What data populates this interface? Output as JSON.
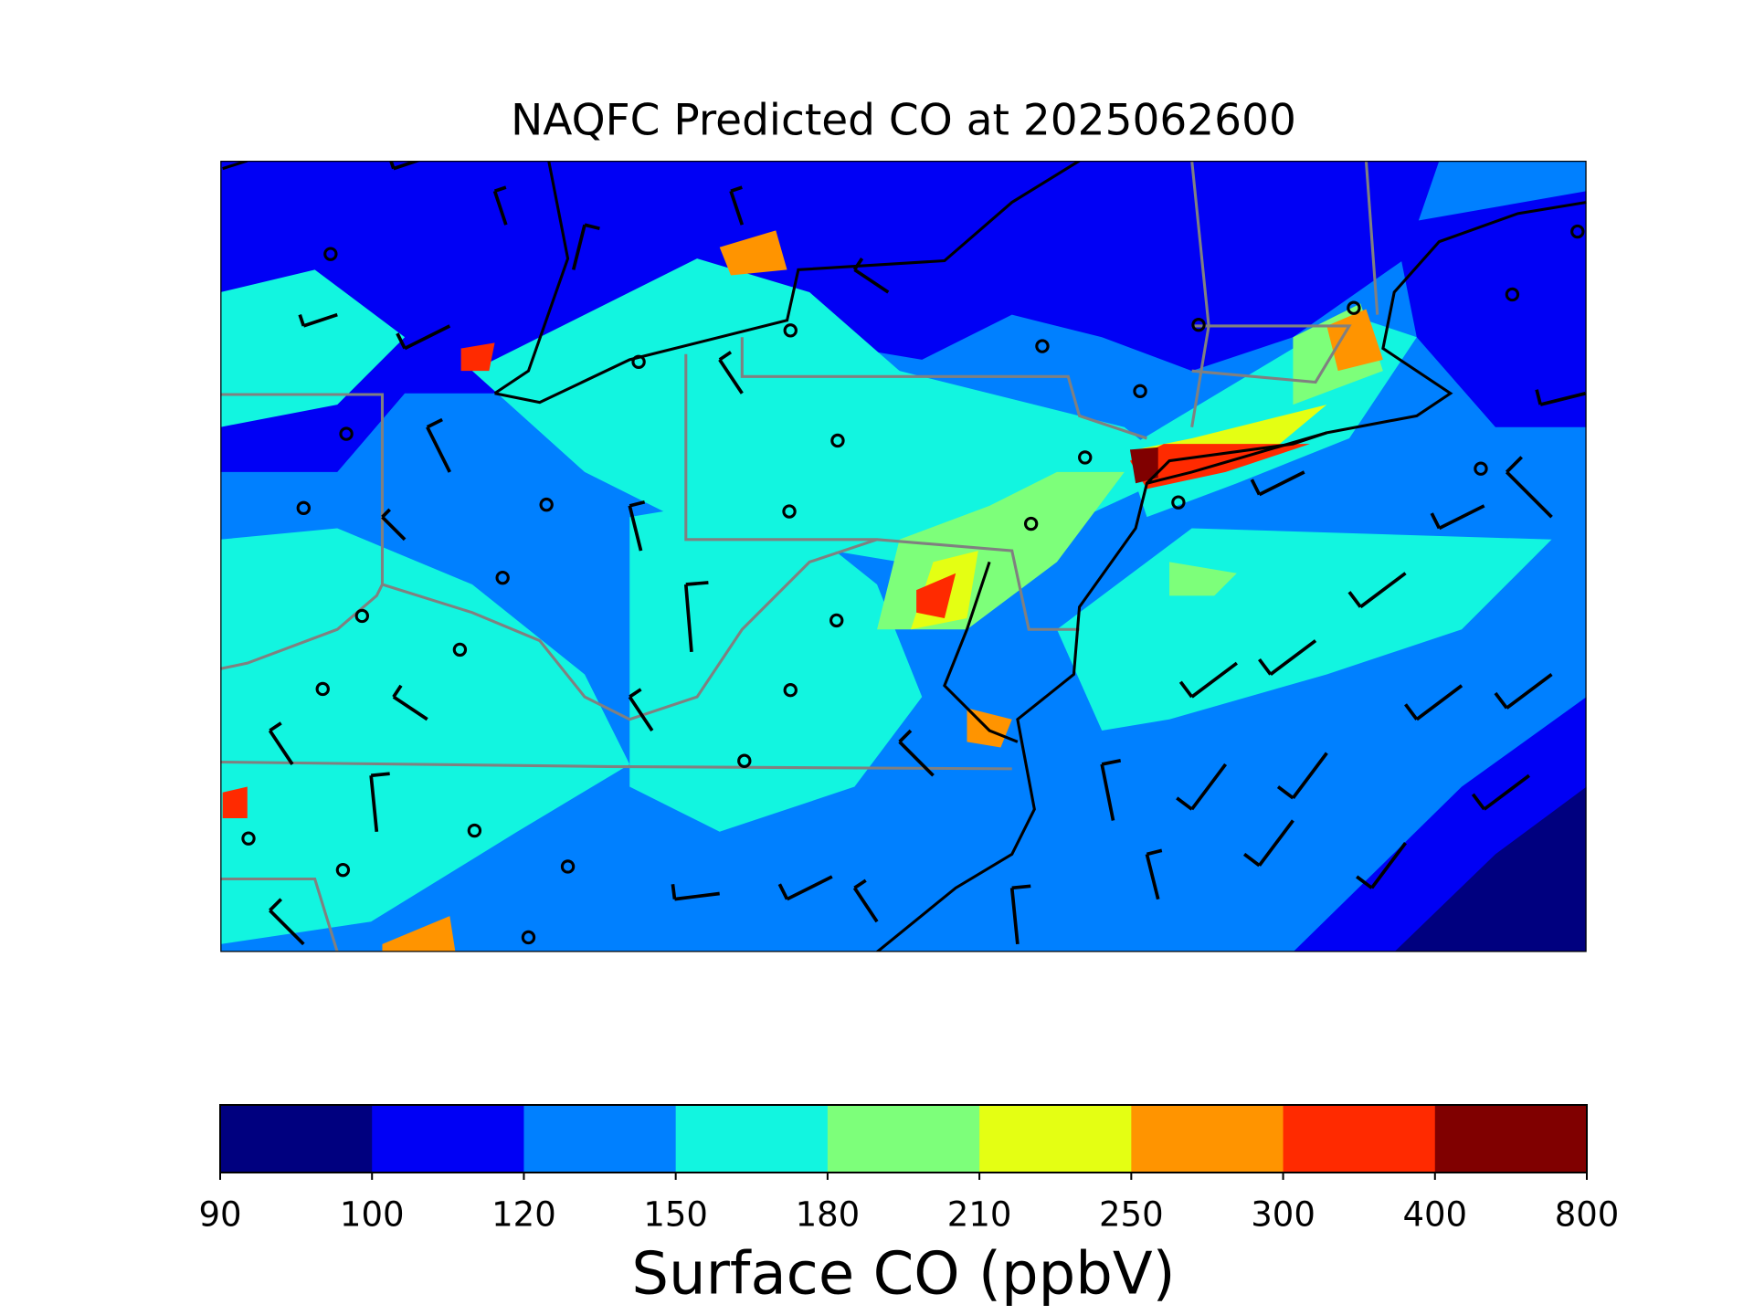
{
  "title": "NAQFC Predicted CO at 2025062600",
  "colorbar": {
    "label": "Surface CO (ppbV)",
    "levels": [
      90,
      100,
      120,
      150,
      180,
      210,
      250,
      300,
      400,
      800
    ],
    "colors": [
      "#00007f",
      "#0000f5",
      "#0080ff",
      "#12f5e0",
      "#7dff7a",
      "#e4ff13",
      "#ff9400",
      "#ff2a00",
      "#800000"
    ]
  }
}
